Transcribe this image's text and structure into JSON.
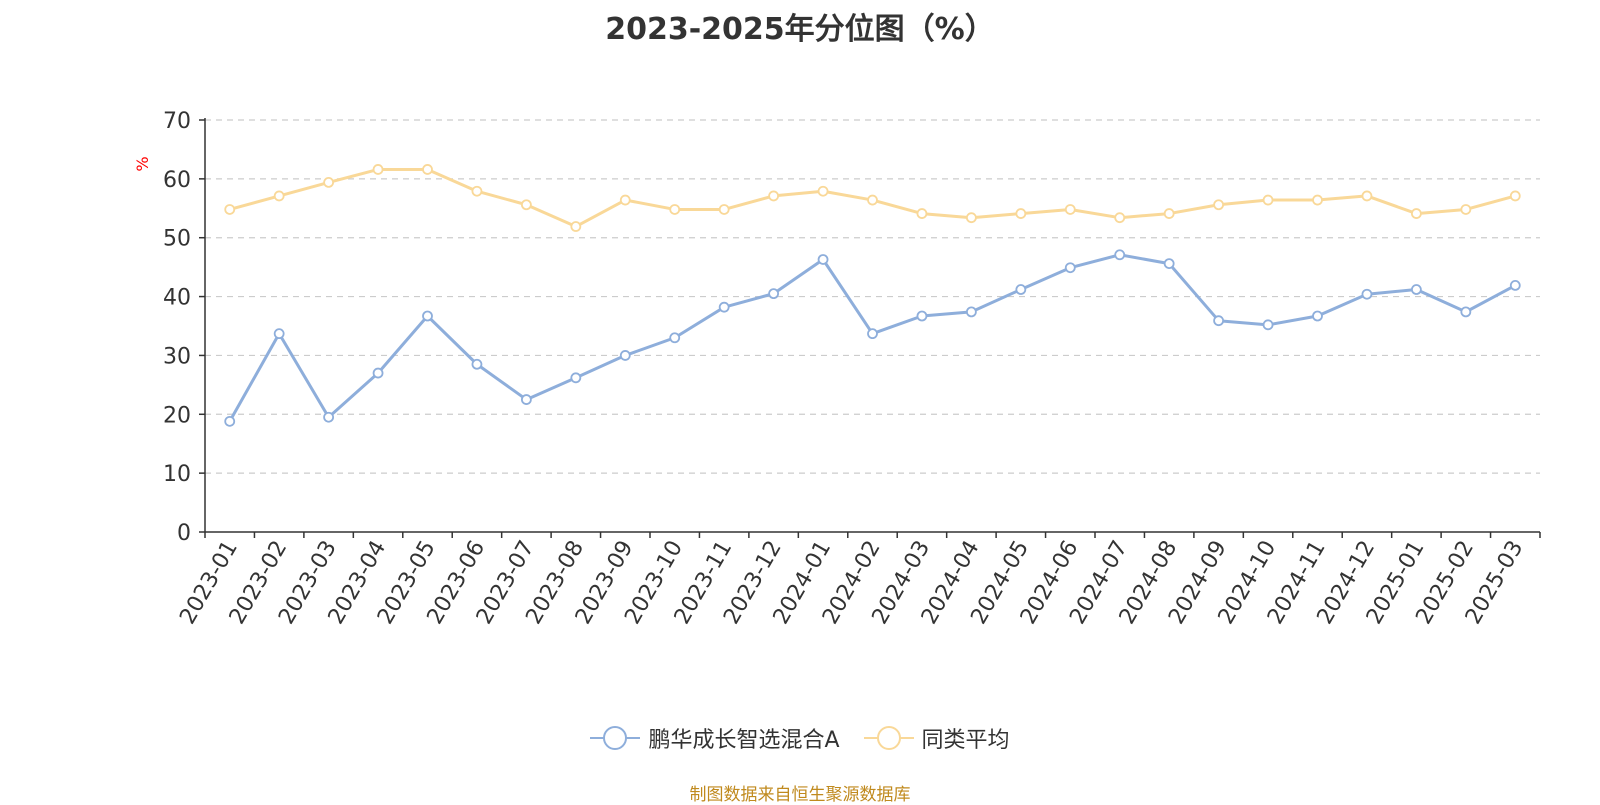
{
  "colors": {
    "series1": "#8eaedb",
    "series2": "#f9d898",
    "axis": "#333333",
    "grid": "#cccccc",
    "ylabel": "#ff0000",
    "footer": "#c08a1e"
  },
  "footer": "制图数据来自恒生聚源数据库",
  "chart_data": {
    "type": "line",
    "title": "2023-2025年分位图（%）",
    "xlabel": "",
    "ylabel": "%",
    "ylim": [
      0,
      70
    ],
    "yticks": [
      0,
      10,
      20,
      30,
      40,
      50,
      60,
      70
    ],
    "grid": true,
    "legend_position": "bottom",
    "x": [
      "2023-01",
      "2023-02",
      "2023-03",
      "2023-04",
      "2023-05",
      "2023-06",
      "2023-07",
      "2023-08",
      "2023-09",
      "2023-10",
      "2023-11",
      "2023-12",
      "2024-01",
      "2024-02",
      "2024-03",
      "2024-04",
      "2024-05",
      "2024-06",
      "2024-07",
      "2024-08",
      "2024-09",
      "2024-10",
      "2024-11",
      "2024-12",
      "2025-01",
      "2025-02",
      "2025-03"
    ],
    "series": [
      {
        "name": "鹏华成长智选混合A",
        "values": [
          18.8,
          33.7,
          19.5,
          27.0,
          36.7,
          28.5,
          22.5,
          26.2,
          30.0,
          33.0,
          38.2,
          40.5,
          46.3,
          33.7,
          36.7,
          37.4,
          41.2,
          44.9,
          47.1,
          45.6,
          35.9,
          35.2,
          36.7,
          40.4,
          41.2,
          37.4,
          41.9
        ]
      },
      {
        "name": "同类平均",
        "values": [
          54.8,
          57.1,
          59.4,
          61.6,
          61.6,
          57.9,
          55.6,
          51.9,
          56.4,
          54.8,
          54.8,
          57.1,
          57.9,
          56.4,
          54.1,
          53.4,
          54.1,
          54.8,
          53.4,
          54.1,
          55.6,
          56.4,
          56.4,
          57.1,
          54.1,
          54.8,
          57.1
        ]
      }
    ]
  }
}
